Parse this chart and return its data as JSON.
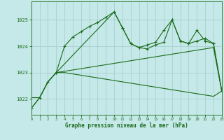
{
  "bg_color": "#c5e8e8",
  "grid_color": "#a8d0d0",
  "line_color": "#1a6b1a",
  "xlabel": "Graphe pression niveau de la mer (hPa)",
  "xlim": [
    0,
    23
  ],
  "ylim": [
    1021.4,
    1025.7
  ],
  "yticks": [
    1022,
    1023,
    1024,
    1025
  ],
  "xticks": [
    0,
    1,
    2,
    3,
    4,
    5,
    6,
    7,
    8,
    9,
    10,
    11,
    12,
    13,
    14,
    15,
    16,
    17,
    18,
    19,
    20,
    21,
    22,
    23
  ],
  "line1_x": [
    0,
    1,
    2,
    3,
    4,
    5,
    6,
    7,
    8,
    9,
    10,
    11,
    12,
    13,
    14,
    15,
    16,
    17,
    18,
    19,
    20,
    21,
    22,
    23
  ],
  "line1_y": [
    1021.65,
    1022.05,
    1022.65,
    1023.0,
    1024.0,
    1024.35,
    1024.55,
    1024.75,
    1024.9,
    1025.1,
    1025.3,
    1024.7,
    1024.1,
    1023.95,
    1023.9,
    1024.05,
    1024.15,
    1025.0,
    1024.2,
    1024.1,
    1024.2,
    1024.3,
    1024.1,
    1022.3
  ],
  "line2_x": [
    0,
    1,
    2,
    3,
    4,
    5,
    6,
    7,
    8,
    9,
    10,
    11,
    12,
    13,
    14,
    15,
    16,
    17,
    18,
    19,
    20,
    21,
    22,
    23
  ],
  "line2_y": [
    1021.65,
    1022.05,
    1022.65,
    1023.0,
    1023.05,
    1023.1,
    1023.15,
    1023.2,
    1023.25,
    1023.3,
    1023.35,
    1023.4,
    1023.45,
    1023.5,
    1023.55,
    1023.6,
    1023.65,
    1023.7,
    1023.75,
    1023.8,
    1023.85,
    1023.9,
    1023.95,
    1022.3
  ],
  "line3_x": [
    0,
    1,
    2,
    3,
    4,
    5,
    6,
    7,
    8,
    9,
    10,
    11,
    12,
    13,
    14,
    15,
    16,
    17,
    18,
    19,
    20,
    21,
    22,
    23
  ],
  "line3_y": [
    1022.05,
    1022.05,
    1022.65,
    1023.0,
    1023.0,
    1022.95,
    1022.9,
    1022.85,
    1022.8,
    1022.75,
    1022.7,
    1022.65,
    1022.6,
    1022.55,
    1022.5,
    1022.45,
    1022.4,
    1022.35,
    1022.3,
    1022.25,
    1022.2,
    1022.15,
    1022.1,
    1022.3
  ],
  "line4_x": [
    3,
    10,
    11,
    12,
    13,
    14,
    15,
    16,
    17,
    18,
    19,
    20,
    21,
    22,
    23
  ],
  "line4_y": [
    1023.0,
    1025.3,
    1024.7,
    1024.1,
    1023.95,
    1024.05,
    1024.15,
    1024.6,
    1025.0,
    1024.2,
    1024.1,
    1024.6,
    1024.2,
    1024.1,
    1022.3
  ]
}
